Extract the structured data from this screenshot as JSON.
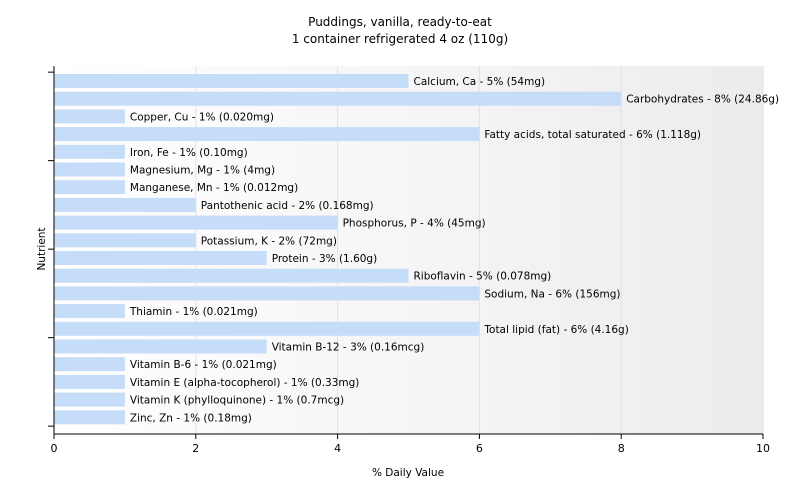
{
  "chart_data": {
    "type": "bar",
    "orientation": "horizontal",
    "title": "Puddings, vanilla, ready-to-eat",
    "subtitle": "1 container refrigerated 4 oz (110g)",
    "xlabel": "% Daily Value",
    "ylabel": "Nutrient",
    "xlim": [
      0,
      10
    ],
    "xticks": [
      "0",
      "2",
      "4",
      "6",
      "8",
      "10"
    ],
    "grid": true,
    "bar_color": "#c5ddf9",
    "categories": [
      "Calcium, Ca - 5% (54mg)",
      "Carbohydrates - 8% (24.86g)",
      "Copper, Cu - 1% (0.020mg)",
      "Fatty acids, total saturated - 6% (1.118g)",
      "Iron, Fe - 1% (0.10mg)",
      "Magnesium, Mg - 1% (4mg)",
      "Manganese, Mn - 1% (0.012mg)",
      "Pantothenic acid - 2% (0.168mg)",
      "Phosphorus, P - 4% (45mg)",
      "Potassium, K - 2% (72mg)",
      "Protein - 3% (1.60g)",
      "Riboflavin - 5% (0.078mg)",
      "Sodium, Na - 6% (156mg)",
      "Thiamin - 1% (0.021mg)",
      "Total lipid (fat) - 6% (4.16g)",
      "Vitamin B-12 - 3% (0.16mcg)",
      "Vitamin B-6 - 1% (0.021mg)",
      "Vitamin E (alpha-tocopherol) - 1% (0.33mg)",
      "Vitamin K (phylloquinone) - 1% (0.7mcg)",
      "Zinc, Zn - 1% (0.18mg)"
    ],
    "values": [
      5,
      8,
      1,
      6,
      1,
      1,
      1,
      2,
      4,
      2,
      3,
      5,
      6,
      1,
      6,
      3,
      1,
      1,
      1,
      1
    ]
  }
}
